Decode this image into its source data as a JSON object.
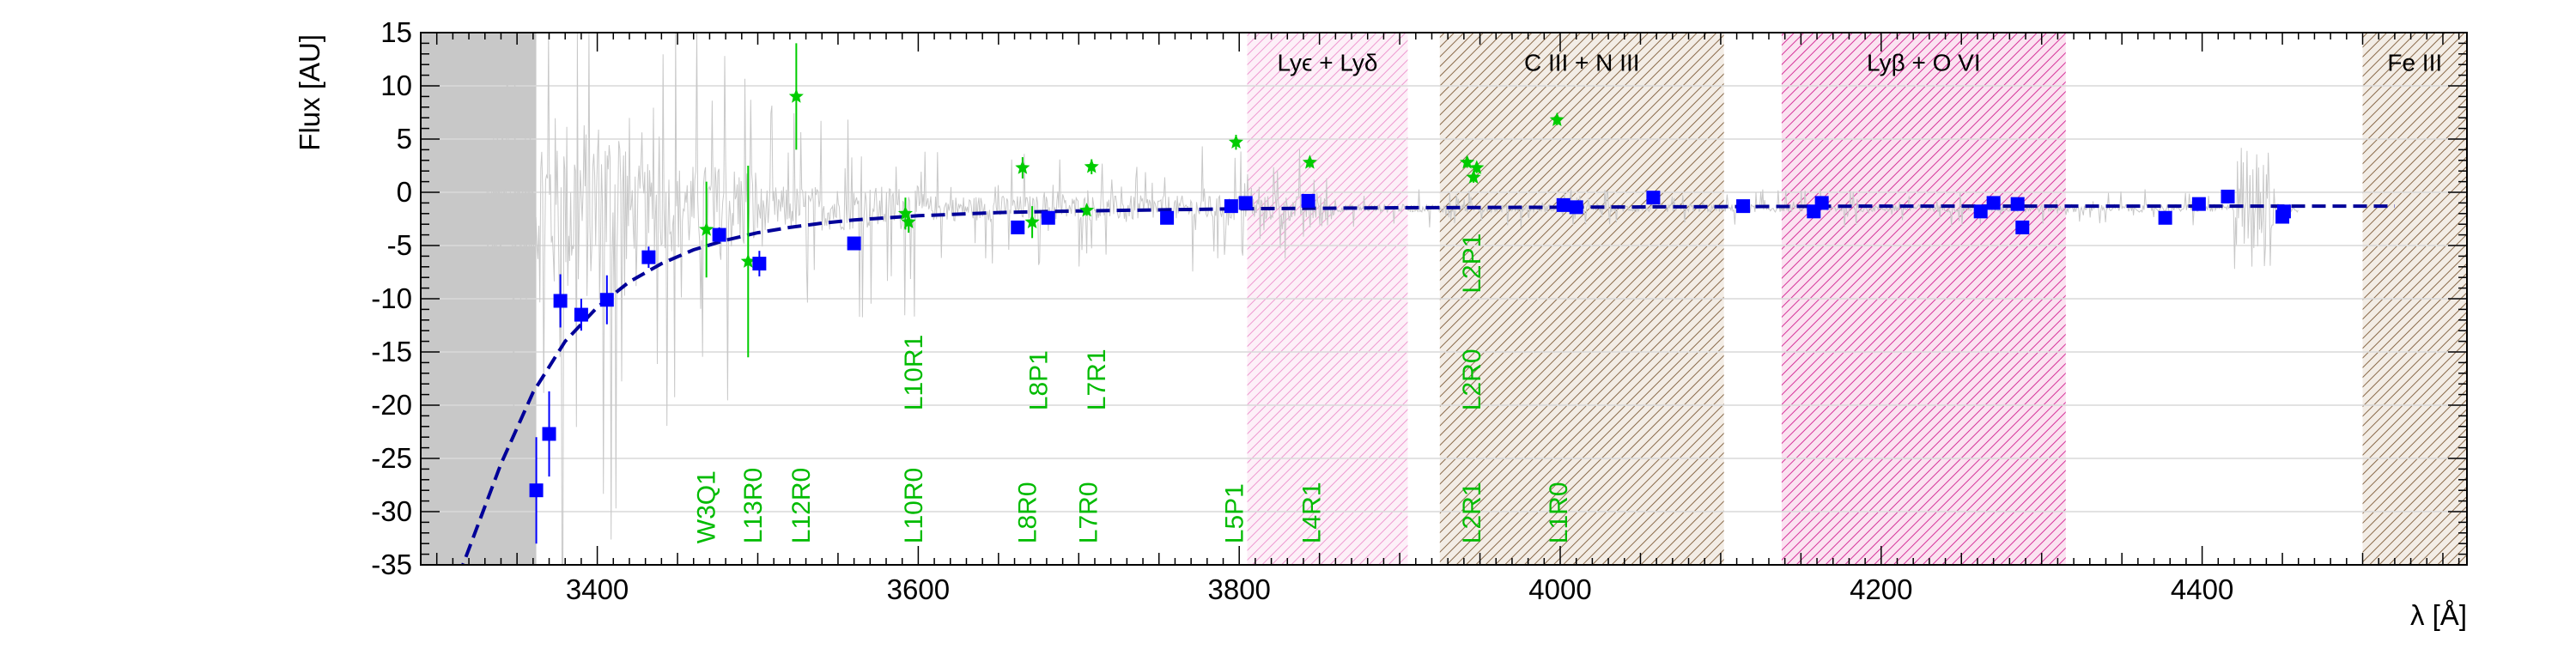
{
  "chart_data": {
    "type": "scatter",
    "xlabel": "λ [Å]",
    "ylabel": "Flux [AU]",
    "xlim": [
      3290,
      4565
    ],
    "ylim": [
      -35,
      15
    ],
    "x_ticks": [
      3400,
      3600,
      3800,
      4000,
      4200,
      4400
    ],
    "y_ticks": [
      15,
      10,
      5,
      0,
      -5,
      -10,
      -15,
      -20,
      -25,
      -30,
      -35
    ],
    "grid": "horizontal",
    "colors": {
      "measurement": "#0000ff",
      "line_flux": "#00cc00",
      "fit": "#000099",
      "spectrum": "#c8c8c8",
      "lya_region": "#cc0099",
      "metal_region": "#7a5a3a"
    },
    "shaded_regions": [
      {
        "label": "",
        "x": [
          3290,
          3362
        ],
        "style": "solid-gray"
      },
      {
        "label": "Lyϵ + Lyδ",
        "x": [
          3805,
          3905
        ],
        "style": "hatched-pink-light"
      },
      {
        "label": "C III + N III",
        "x": [
          3925,
          4102
        ],
        "style": "hatched-brown"
      },
      {
        "label": "Lyβ + O VI",
        "x": [
          4138,
          4315
        ],
        "style": "hatched-pink"
      },
      {
        "label": "Fe III",
        "x": [
          4500,
          4565
        ],
        "style": "hatched-brown"
      }
    ],
    "measurements": [
      {
        "x": 3362,
        "y": -28.0,
        "err": 5.0
      },
      {
        "x": 3370,
        "y": -22.7,
        "err": 4.0
      },
      {
        "x": 3377,
        "y": -10.2,
        "err": 2.5
      },
      {
        "x": 3390,
        "y": -11.5,
        "err": 1.5
      },
      {
        "x": 3406,
        "y": -10.1,
        "err": 2.3
      },
      {
        "x": 3432,
        "y": -6.1,
        "err": 1.0
      },
      {
        "x": 3476,
        "y": -4.0,
        "err": 0.7
      },
      {
        "x": 3501,
        "y": -6.7,
        "err": 1.2
      },
      {
        "x": 3560,
        "y": -4.8,
        "err": 0.4
      },
      {
        "x": 3662,
        "y": -3.3,
        "err": 0.3
      },
      {
        "x": 3681,
        "y": -2.4,
        "err": 0.3
      },
      {
        "x": 3755,
        "y": -2.4,
        "err": 0.3
      },
      {
        "x": 3795,
        "y": -1.3,
        "err": 0.3
      },
      {
        "x": 3804,
        "y": -1.0,
        "err": 0.3
      },
      {
        "x": 3843,
        "y": -0.8,
        "err": 0.3
      },
      {
        "x": 4002,
        "y": -1.2,
        "err": 0.3
      },
      {
        "x": 4010,
        "y": -1.4,
        "err": 0.3
      },
      {
        "x": 4058,
        "y": -0.5,
        "err": 0.3
      },
      {
        "x": 4114,
        "y": -1.3,
        "err": 0.3
      },
      {
        "x": 4158,
        "y": -1.8,
        "err": 0.3
      },
      {
        "x": 4163,
        "y": -1.0,
        "err": 0.3
      },
      {
        "x": 4262,
        "y": -1.8,
        "err": 0.3
      },
      {
        "x": 4270,
        "y": -1.0,
        "err": 0.3
      },
      {
        "x": 4285,
        "y": -1.1,
        "err": 0.3
      },
      {
        "x": 4288,
        "y": -3.3,
        "err": 0.3
      },
      {
        "x": 4377,
        "y": -2.4,
        "err": 0.3
      },
      {
        "x": 4398,
        "y": -1.1,
        "err": 0.3
      },
      {
        "x": 4416,
        "y": -0.4,
        "err": 0.3
      },
      {
        "x": 4450,
        "y": -2.3,
        "err": 0.3
      },
      {
        "x": 4451,
        "y": -1.8,
        "err": 0.3
      }
    ],
    "line_fluxes": [
      {
        "x": 3468,
        "y": -3.5,
        "err": 4.5
      },
      {
        "x": 3494,
        "y": -6.5,
        "err": 9.0
      },
      {
        "x": 3524,
        "y": 9.0,
        "err": 5.0
      },
      {
        "x": 3592,
        "y": -2.0,
        "err": 1.5
      },
      {
        "x": 3594,
        "y": -2.8,
        "err": 1.0
      },
      {
        "x": 3665,
        "y": 2.3,
        "err": 1.0
      },
      {
        "x": 3671,
        "y": -2.8,
        "err": 1.5
      },
      {
        "x": 3705,
        "y": -1.7,
        "err": 0.5
      },
      {
        "x": 3708,
        "y": 2.4,
        "err": 0.7
      },
      {
        "x": 3798,
        "y": 4.7,
        "err": 0.7
      },
      {
        "x": 3844,
        "y": 2.8,
        "err": 0.5
      },
      {
        "x": 3942,
        "y": 2.8,
        "err": 0.5
      },
      {
        "x": 3946,
        "y": 1.4,
        "err": 0.5
      },
      {
        "x": 3948,
        "y": 2.3,
        "err": 0.5
      },
      {
        "x": 3998,
        "y": 6.8,
        "err": 0.5
      }
    ],
    "line_labels": [
      {
        "text": "W3Q1",
        "x": 3468,
        "y": -33
      },
      {
        "text": "L13R0",
        "x": 3497,
        "y": -33
      },
      {
        "text": "L12R0",
        "x": 3527,
        "y": -33
      },
      {
        "text": "L10R0",
        "x": 3597,
        "y": -33
      },
      {
        "text": "L8R0",
        "x": 3668,
        "y": -33
      },
      {
        "text": "L7R0",
        "x": 3706,
        "y": -33
      },
      {
        "text": "L5P1",
        "x": 3797,
        "y": -33
      },
      {
        "text": "L4R1",
        "x": 3845,
        "y": -33
      },
      {
        "text": "L2R1",
        "x": 3945,
        "y": -33
      },
      {
        "text": "L1R0",
        "x": 3999,
        "y": -33
      },
      {
        "text": "L10R1",
        "x": 3597,
        "y": -20.5
      },
      {
        "text": "L8P1",
        "x": 3675,
        "y": -20.5
      },
      {
        "text": "L7R1",
        "x": 3711,
        "y": -20.5
      },
      {
        "text": "L2R0",
        "x": 3945,
        "y": -20.5
      },
      {
        "text": "L2P1",
        "x": 3945,
        "y": -9.5
      }
    ],
    "fit_curve": [
      [
        3300,
        -41.5
      ],
      [
        3320,
        -33.5
      ],
      [
        3340,
        -25.5
      ],
      [
        3360,
        -18.8
      ],
      [
        3380,
        -14.0
      ],
      [
        3400,
        -10.8
      ],
      [
        3420,
        -8.4
      ],
      [
        3440,
        -6.7
      ],
      [
        3460,
        -5.4
      ],
      [
        3480,
        -4.5
      ],
      [
        3500,
        -3.8
      ],
      [
        3520,
        -3.3
      ],
      [
        3540,
        -2.9
      ],
      [
        3560,
        -2.6
      ],
      [
        3580,
        -2.4
      ],
      [
        3600,
        -2.2
      ],
      [
        3650,
        -1.9
      ],
      [
        3700,
        -1.75
      ],
      [
        3750,
        -1.65
      ],
      [
        3800,
        -1.55
      ],
      [
        3900,
        -1.45
      ],
      [
        4000,
        -1.4
      ],
      [
        4100,
        -1.35
      ],
      [
        4200,
        -1.3
      ],
      [
        4300,
        -1.3
      ],
      [
        4400,
        -1.3
      ],
      [
        4520,
        -1.3
      ]
    ]
  }
}
